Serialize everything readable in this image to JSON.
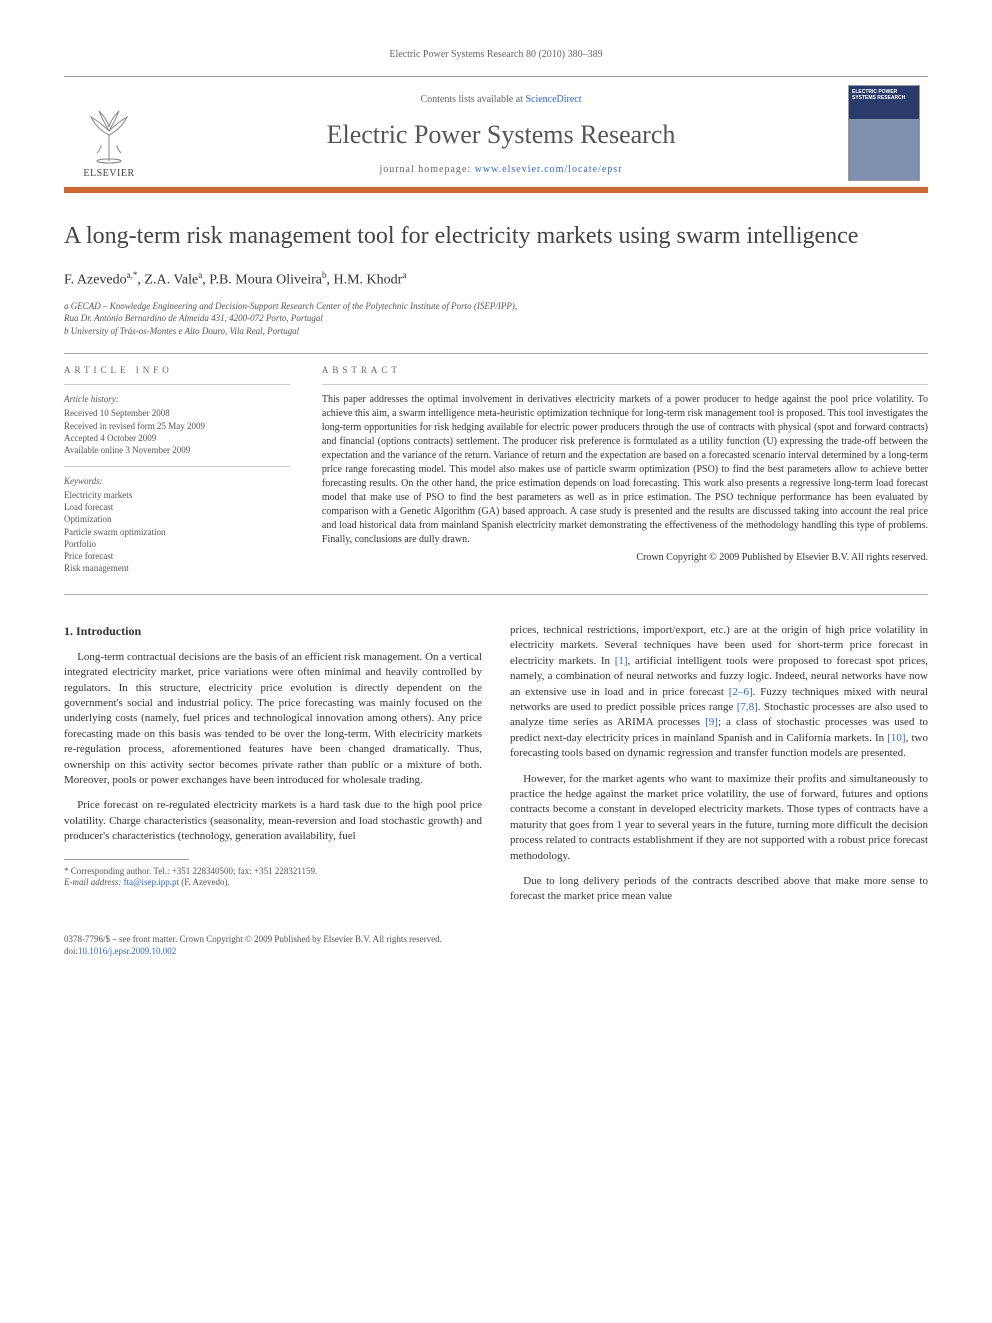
{
  "runhead": "Electric Power Systems Research 80 (2010) 380–389",
  "masthead": {
    "contents_prefix": "Contents lists available at ",
    "contents_link": "ScienceDirect",
    "journal": "Electric Power Systems Research",
    "homepage_prefix": "journal homepage: ",
    "homepage_link": "www.elsevier.com/locate/epsr",
    "publisher_label": "ELSEVIER",
    "cover_title": "ELECTRIC POWER SYSTEMS RESEARCH",
    "logo_color": "#e67a2e",
    "rule_color": "#cc6633"
  },
  "title": "A long-term risk management tool for electricity markets using swarm intelligence",
  "authors_html": "F. Azevedo<sup>a,*</sup>, Z.A. Vale<sup>a</sup>, P.B. Moura Oliveira<sup>b</sup>, H.M. Khodr<sup>a</sup>",
  "affiliations": [
    "a GECAD – Knowledge Engineering and Decision-Support Research Center of the Polytechnic Institute of Porto (ISEP/IPP),",
    "Rua Dr. António Bernardino de Almeida 431, 4200-072 Porto, Portugal",
    "b University of Trás-os-Montes e Alto Douro, Vila Real, Portugal"
  ],
  "info": {
    "label": "article info",
    "history_title": "Article history:",
    "history": [
      "Received 10 September 2008",
      "Received in revised form 25 May 2009",
      "Accepted 4 October 2009",
      "Available online 3 November 2009"
    ],
    "keywords_title": "Keywords:",
    "keywords": [
      "Electricity markets",
      "Load forecast",
      "Optimization",
      "Particle swarm optimization",
      "Portfolio",
      "Price forecast",
      "Risk management"
    ]
  },
  "abstract": {
    "label": "abstract",
    "text": "This paper addresses the optimal involvement in derivatives electricity markets of a power producer to hedge against the pool price volatility. To achieve this aim, a swarm intelligence meta-heuristic optimization technique for long-term risk management tool is proposed. This tool investigates the long-term opportunities for risk hedging available for electric power producers through the use of contracts with physical (spot and forward contracts) and financial (options contracts) settlement. The producer risk preference is formulated as a utility function (U) expressing the trade-off between the expectation and the variance of the return. Variance of return and the expectation are based on a forecasted scenario interval determined by a long-term price range forecasting model. This model also makes use of particle swarm optimization (PSO) to find the best parameters allow to achieve better forecasting results. On the other hand, the price estimation depends on load forecasting. This work also presents a regressive long-term load forecast model that make use of PSO to find the best parameters as well as in price estimation. The PSO technique performance has been evaluated by comparison with a Genetic Algorithm (GA) based approach. A case study is presented and the results are discussed taking into account the real price and load historical data from mainland Spanish electricity market demonstrating the effectiveness of the methodology handling this type of problems. Finally, conclusions are dully drawn.",
    "copyright": "Crown Copyright © 2009 Published by Elsevier B.V. All rights reserved."
  },
  "body": {
    "section_heading": "1. Introduction",
    "left_paras": [
      "Long-term contractual decisions are the basis of an efficient risk management. On a vertical integrated electricity market, price variations were often minimal and heavily controlled by regulators. In this structure, electricity price evolution is directly dependent on the government's social and industrial policy. The price forecasting was mainly focused on the underlying costs (namely, fuel prices and technological innovation among others). Any price forecasting made on this basis was tended to be over the long-term. With electricity markets re-regulation process, aforementioned features have been changed dramatically. Thus, ownership on this activity sector becomes private rather than public or a mixture of both. Moreover, pools or power exchanges have been introduced for wholesale trading.",
      "Price forecast on re-regulated electricity markets is a hard task due to the high pool price volatility. Charge characteristics (seasonality, mean-reversion and load stochastic growth) and producer's characteristics (technology, generation availability, fuel"
    ],
    "right_paras": [
      "prices, technical restrictions, import/export, etc.) are at the origin of high price volatility in electricity markets. Several techniques have been used for short-term price forecast in electricity markets. In [1], artificial intelligent tools were proposed to forecast spot prices, namely, a combination of neural networks and fuzzy logic. Indeed, neural networks have now an extensive use in load and in price forecast [2–6]. Fuzzy techniques mixed with neural networks are used to predict possible prices range [7,8]. Stochastic processes are also used to analyze time series as ARIMA processes [9]; a class of stochastic processes was used to predict next-day electricity prices in mainland Spanish and in California markets. In [10], two forecasting tools based on dynamic regression and transfer function models are presented.",
      "However, for the market agents who want to maximize their profits and simultaneously to practice the hedge against the market price volatility, the use of forward, futures and options contracts become a constant in developed electricity markets. Those types of contracts have a maturity that goes from 1 year to several years in the future, turning more difficult the decision process related to contracts establishment if they are not supported with a robust price forecast methodology.",
      "Due to long delivery periods of the contracts described above that make more sense to forecast the market price mean value"
    ]
  },
  "footnotes": {
    "corr": "* Corresponding author. Tel.: +351 228340500; fax: +351 228321159.",
    "email_label": "E-mail address: ",
    "email": "fta@isep.ipp.pt",
    "email_tail": " (F. Azevedo)."
  },
  "footer": {
    "line1": "0378-7796/$ – see front matter. Crown Copyright © 2009 Published by Elsevier B.V. All rights reserved.",
    "doi_label": "doi:",
    "doi": "10.1016/j.epsr.2009.10.002"
  },
  "colors": {
    "text": "#333333",
    "muted": "#666666",
    "link": "#3366cc",
    "rule": "#aaaaaa",
    "accent": "#cc6633"
  }
}
